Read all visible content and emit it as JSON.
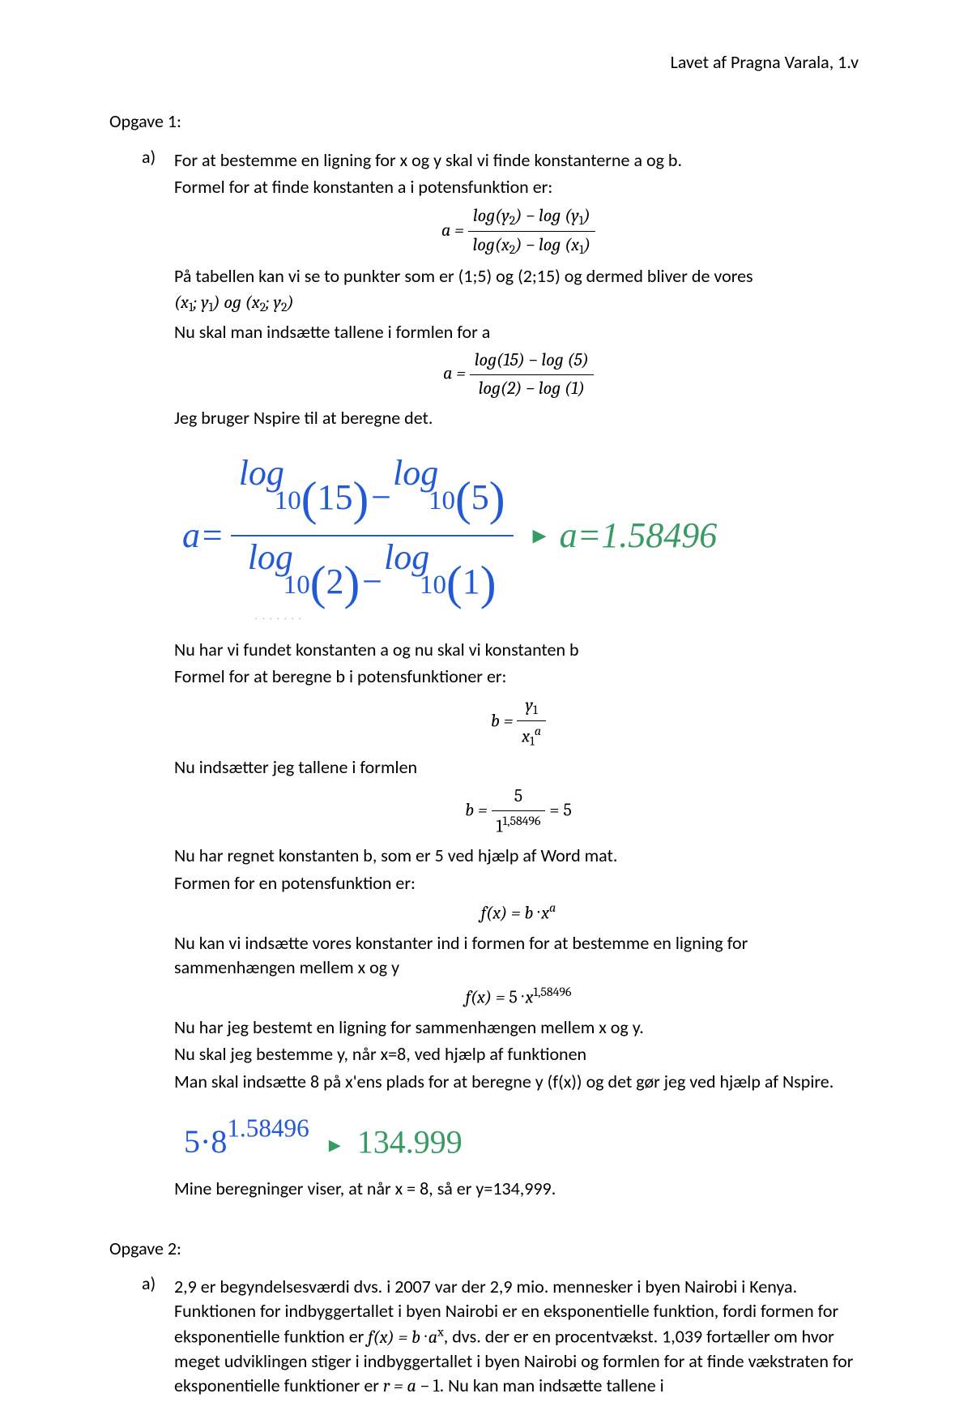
{
  "header": {
    "author_line": "Lavet af Pragna Varala, 1.v"
  },
  "task1": {
    "title": "Opgave 1:",
    "marker": "a)",
    "p1": "For at bestemme en ligning for x og y skal vi finde konstanterne a og b.",
    "p2": "Formel for at finde konstanten a i potensfunktion er:",
    "p3": "På tabellen kan vi se to punkter som er (1;5) og (2;15) og dermed bliver de vores",
    "coords_text": "(x₁; y₁) og (x₂; y₂)",
    "p4": "Nu skal man indsætte tallene i formlen for a",
    "p5": "Jeg bruger Nspire til at beregne det.",
    "cas1": {
      "lhs_prefix": "a=",
      "log_word": "log",
      "base": "10",
      "num_a": "15",
      "num_b": "5",
      "den_a": "2",
      "den_b": "1",
      "result": "a=1.58496",
      "arrow": "▸"
    },
    "p6": "Nu har vi fundet konstanten a og nu skal vi konstanten b",
    "p7": "Formel for at beregne b i potensfunktioner er:",
    "p8": "Nu indsætter jeg tallene i formlen",
    "b_eq_values": {
      "top": "5",
      "bot_base": "1",
      "bot_exp": "1,58496",
      "result": "5"
    },
    "p9": "Nu har regnet konstanten b, som er 5 ved hjælp af Word mat.",
    "p10": "Formen for en potensfunktion er:",
    "p11": "Nu kan vi indsætte vores konstanter ind i formen for at bestemme en ligning for sammenhængen mellem x og y",
    "fx_final_exp": "1,58496",
    "p12": "Nu har jeg bestemt en ligning for sammenhængen mellem x og y.",
    "p13": "Nu skal jeg bestemme y, når x=8, ved hjælp af funktionen",
    "p14": "Man skal indsætte 8 på x'ens plads for at beregne y (f(x)) og det gør jeg ved hjælp af Nspire.",
    "cas2": {
      "base": "5·8",
      "exp": "1.58496",
      "arrow": "▸",
      "result": "134.999"
    },
    "p15": "Mine beregninger viser, at når x = 8, så er y=134,999."
  },
  "task2": {
    "title": "Opgave 2:",
    "marker": "a)",
    "p1": "2,9 er begyndelsesværdi dvs. i 2007 var der 2,9 mio. mennesker i byen Nairobi i Kenya. Funktionen for indbyggertallet i byen Nairobi er en eksponentielle funktion, fordi formen for eksponentielle funktion er ",
    "p1b": ", dvs. der er en procentvækst. 1,039 fortæller om hvor meget udviklingen stiger i indbyggertallet i byen Nairobi og formlen for at finde vækstraten for eksponentielle funktioner er ",
    "p1c": ". Nu kan man indsætte tallene i"
  }
}
